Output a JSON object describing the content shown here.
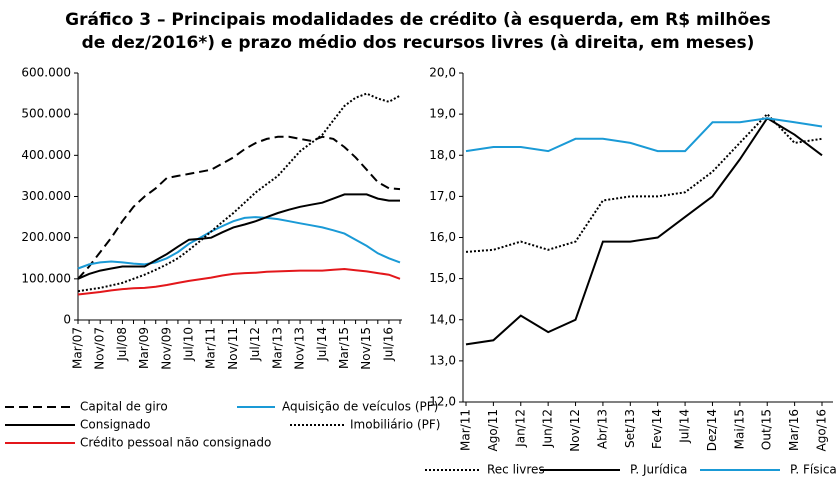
{
  "title": [
    "Gráfico 3 – Principais modalidades de crédito (à esquerda, em R$ milhões",
    "de dez/2016*) e prazo médio dos recursos livres (à direita, em meses)"
  ],
  "chart_data": [
    {
      "type": "line",
      "categories": [
        "Mar/07",
        null,
        "Nov/07",
        null,
        "Jul/08",
        null,
        "Mar/09",
        null,
        "Nov/09",
        null,
        "Jul/10",
        null,
        "Mar/11",
        null,
        "Nov/11",
        null,
        "Jul/12",
        null,
        "Mar/13",
        null,
        "Nov/13",
        null,
        "Jul/14",
        null,
        "Mar/15",
        null,
        "Nov/15",
        null,
        "Jul/16",
        null
      ],
      "ylim": [
        0,
        600000
      ],
      "yticks": [
        0,
        {
          "value": 100000,
          "label": "100.000"
        },
        {
          "value": 200000,
          "label": "200.000"
        },
        {
          "value": 300000,
          "label": "300.000"
        },
        {
          "value": 400000,
          "label": "400.000"
        },
        {
          "value": 500000,
          "label": "500.000"
        },
        {
          "value": 600000,
          "label": "600.000"
        }
      ],
      "series": [
        {
          "name": "Capital de giro",
          "color": "#000000",
          "dash": "dashed",
          "values": [
            100000,
            130000,
            165000,
            200000,
            240000,
            275000,
            300000,
            320000,
            345000,
            350000,
            355000,
            360000,
            365000,
            380000,
            395000,
            415000,
            430000,
            440000,
            445000,
            445000,
            440000,
            435000,
            445000,
            440000,
            420000,
            395000,
            365000,
            335000,
            320000,
            318000
          ]
        },
        {
          "name": "Aquisição de veículos (PF)",
          "color": "#1a9ad6",
          "dash": "solid",
          "values": [
            125000,
            135000,
            140000,
            142000,
            140000,
            137000,
            135000,
            140000,
            150000,
            165000,
            185000,
            200000,
            215000,
            228000,
            240000,
            248000,
            250000,
            248000,
            245000,
            240000,
            235000,
            230000,
            225000,
            218000,
            210000,
            195000,
            180000,
            162000,
            150000,
            140000
          ]
        },
        {
          "name": "Consignado",
          "color": "#000000",
          "dash": "solid",
          "values": [
            100000,
            112000,
            120000,
            125000,
            130000,
            130000,
            130000,
            145000,
            160000,
            178000,
            195000,
            197000,
            200000,
            213000,
            225000,
            232000,
            240000,
            250000,
            260000,
            268000,
            275000,
            280000,
            285000,
            295000,
            305000,
            305000,
            305000,
            295000,
            290000,
            290000
          ]
        },
        {
          "name": "Imobiliário (PF)",
          "color": "#000000",
          "dash": "dotted",
          "values": [
            70000,
            74000,
            78000,
            84000,
            90000,
            100000,
            110000,
            122000,
            135000,
            150000,
            170000,
            192000,
            215000,
            238000,
            260000,
            285000,
            310000,
            330000,
            350000,
            380000,
            410000,
            430000,
            450000,
            485000,
            520000,
            540000,
            550000,
            538000,
            530000,
            545000
          ]
        },
        {
          "name": "Crédito pessoal não consignado",
          "color": "#e3171b",
          "dash": "solid",
          "values": [
            62000,
            65000,
            68000,
            72000,
            75000,
            77000,
            78000,
            81000,
            85000,
            90000,
            95000,
            99000,
            103000,
            108000,
            112000,
            114000,
            115000,
            117000,
            118000,
            119000,
            120000,
            120000,
            120000,
            122000,
            124000,
            121000,
            118000,
            114000,
            110000,
            100000
          ]
        }
      ]
    },
    {
      "type": "line",
      "categories": [
        "Mar/11",
        "Ago/11",
        "Jan/12",
        "Jun/12",
        "Nov/12",
        "Abr/13",
        "Set/13",
        "Fev/14",
        "Jul/14",
        "Dez/14",
        "Mai/15",
        "Out/15",
        "Mar/16",
        "Ago/16"
      ],
      "ylim": [
        12,
        20
      ],
      "yticks": [
        {
          "value": 12,
          "label": "12,0"
        },
        {
          "value": 13,
          "label": "13,0"
        },
        {
          "value": 14,
          "label": "14,0"
        },
        {
          "value": 15,
          "label": "15,0"
        },
        {
          "value": 16,
          "label": "16,0"
        },
        {
          "value": 17,
          "label": "17,0"
        },
        {
          "value": 18,
          "label": "18,0"
        },
        {
          "value": 19,
          "label": "19,0"
        },
        {
          "value": 20,
          "label": "20,0"
        }
      ],
      "series": [
        {
          "name": "Rec livres",
          "color": "#000000",
          "dash": "dotted",
          "values": [
            15.65,
            15.7,
            15.9,
            15.7,
            15.9,
            16.9,
            17.0,
            17.0,
            17.1,
            17.6,
            18.3,
            19.0,
            18.3,
            18.4
          ]
        },
        {
          "name": "P. Jurídica",
          "color": "#000000",
          "dash": "solid",
          "values": [
            13.4,
            13.5,
            14.1,
            13.7,
            14.0,
            15.9,
            15.9,
            16.0,
            16.5,
            17.0,
            17.9,
            18.9,
            18.5,
            18.0
          ]
        },
        {
          "name": "P. Física",
          "color": "#1a9ad6",
          "dash": "solid",
          "values": [
            18.1,
            18.2,
            18.2,
            18.1,
            18.4,
            18.4,
            18.3,
            18.1,
            18.1,
            18.8,
            18.8,
            18.9,
            18.8,
            18.7
          ]
        }
      ]
    }
  ]
}
